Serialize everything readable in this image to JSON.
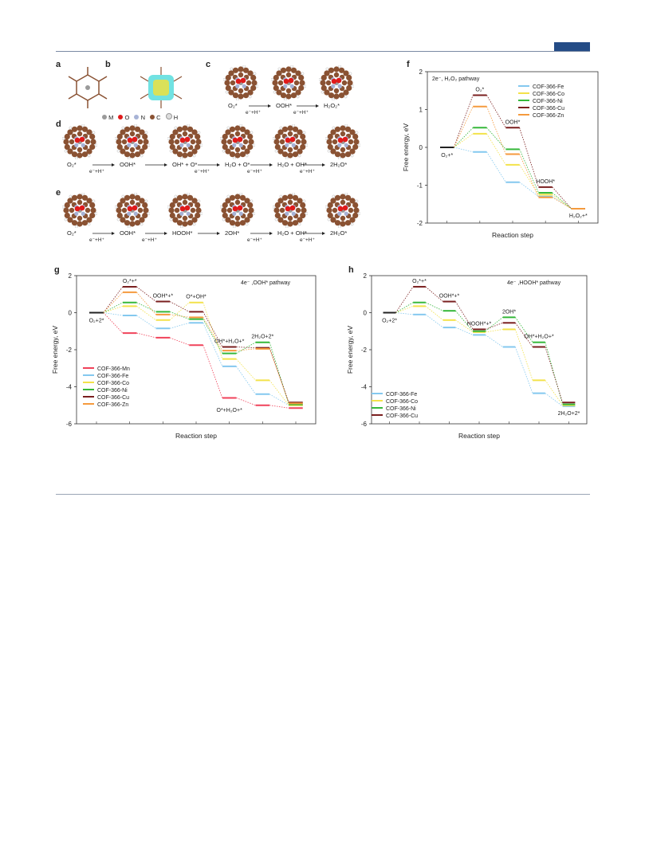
{
  "panel_labels": {
    "a": "a",
    "b": "b",
    "c": "c",
    "d": "d",
    "e": "e",
    "f": "f",
    "g": "g",
    "h": "h"
  },
  "atom_legend": {
    "M": "M",
    "O": "O",
    "N": "N",
    "C": "C",
    "H": "H",
    "text": "M  O  N  C  H"
  },
  "row_c": {
    "captions": [
      "O₂*",
      "OOH*",
      "H₂O₂*"
    ],
    "arrows": [
      "e⁻+H⁺",
      "e⁻+H⁺"
    ]
  },
  "row_d": {
    "captions": [
      "O₂*",
      "OOH*",
      "OH* + O*",
      "H₂O + O*",
      "H₂O + OH*",
      "2H₂O*"
    ],
    "arrows": [
      "e⁻+H⁺",
      "",
      "e⁻+H⁺",
      "e⁻+H⁺",
      "e⁻+H⁺"
    ]
  },
  "row_e": {
    "captions": [
      "O₂*",
      "OOH*",
      "HOOH*",
      "2OH*",
      "H₂O + OH*",
      "2H₂O*"
    ],
    "arrows": [
      "e⁻+H⁺",
      "e⁻+H⁺",
      "",
      "e⁻+H⁺",
      "e⁻+H⁺"
    ]
  },
  "colors": {
    "Mn": "#f0425a",
    "Fe": "#84c8ef",
    "Co": "#f3e24a",
    "Ni": "#36b83a",
    "Cu": "#7a1f1f",
    "Zn": "#f59a3d",
    "atom_M": "#9a9a9a",
    "atom_O": "#e01b1b",
    "atom_N": "#a7b3d6",
    "atom_C": "#8a5233",
    "atom_H": "#f4f4f4"
  },
  "chart_data": [
    {
      "id": "f",
      "type": "line",
      "subtitle": "2e⁻, H₂O₂ pathway",
      "ylabel": "Free energy, eV",
      "xlabel": "Reaction step",
      "ylim": [
        -2,
        2
      ],
      "yticks": [
        "2",
        "1",
        "0",
        "-1",
        "-2"
      ],
      "step_labels": [
        "O₂+*",
        "O₂*",
        "OOH*",
        "HOOH*",
        "H₂O₂+*"
      ],
      "series": [
        {
          "name": "COF-366-Fe",
          "color_key": "Fe",
          "values": [
            0,
            -0.12,
            -0.92,
            -1.3,
            -1.62
          ]
        },
        {
          "name": "COF-366-Co",
          "color_key": "Co",
          "values": [
            0,
            0.36,
            -0.46,
            -1.25,
            -1.62
          ]
        },
        {
          "name": "COF-366-Ni",
          "color_key": "Ni",
          "values": [
            0,
            0.52,
            -0.05,
            -1.2,
            -1.62
          ]
        },
        {
          "name": "COF-366-Cu",
          "color_key": "Cu",
          "values": [
            0,
            1.38,
            0.52,
            -1.05,
            -1.62
          ]
        },
        {
          "name": "COF-366-Zn",
          "color_key": "Zn",
          "values": [
            0,
            1.08,
            -0.18,
            -1.32,
            -1.62
          ]
        }
      ]
    },
    {
      "id": "g",
      "type": "line",
      "subtitle": "4e⁻ ,OOH* pathway",
      "ylabel": "Free energy, eV",
      "xlabel": "Reaction step",
      "ylim": [
        -6,
        2
      ],
      "yticks": [
        "2",
        "0",
        "-2",
        "-4",
        "-6"
      ],
      "step_labels": [
        "O₂+2*",
        "O₂*+*",
        "OOH*+*",
        "O*+OH*",
        "OH*+H₂O+*",
        "2H₂O+2*"
      ],
      "extra_labels": [
        "O*+H₂O+*"
      ],
      "series": [
        {
          "name": "COF-366-Mn",
          "color_key": "Mn",
          "values": [
            0,
            -1.1,
            -1.35,
            -1.75,
            -4.6,
            -5.0,
            -5.15
          ]
        },
        {
          "name": "COF-366-Fe",
          "color_key": "Fe",
          "values": [
            0,
            -0.15,
            -0.85,
            -0.55,
            -2.9,
            -4.4,
            -5.0
          ]
        },
        {
          "name": "COF-366-Co",
          "color_key": "Co",
          "values": [
            0,
            0.35,
            -0.4,
            0.55,
            -2.5,
            -3.65,
            -5.0
          ]
        },
        {
          "name": "COF-366-Ni",
          "color_key": "Ni",
          "values": [
            0,
            0.55,
            0.05,
            -0.35,
            -2.2,
            -1.6,
            -4.95
          ]
        },
        {
          "name": "COF-366-Cu",
          "color_key": "Cu",
          "values": [
            0,
            1.4,
            0.6,
            0.05,
            -1.85,
            -1.9,
            -4.85
          ]
        },
        {
          "name": "COF-366-Zn",
          "color_key": "Zn",
          "values": [
            0,
            1.1,
            -0.1,
            -0.25,
            -2.05,
            -1.95,
            -4.9
          ]
        }
      ]
    },
    {
      "id": "h",
      "type": "line",
      "subtitle": "4e⁻ ,HOOH* pathway",
      "ylabel": "Free energy, eV",
      "xlabel": "Reaction step",
      "ylim": [
        -6,
        2
      ],
      "yticks": [
        "2",
        "0",
        "-2",
        "-4",
        "-6"
      ],
      "step_labels": [
        "O₂+2*",
        "O₂*+*",
        "OOH*+*",
        "HOOH*+*",
        "2OH*",
        "OH*+H₂O+*",
        "2H₂O+2*"
      ],
      "series": [
        {
          "name": "COF-366-Fe",
          "color_key": "Fe",
          "values": [
            0,
            -0.1,
            -0.8,
            -1.2,
            -1.85,
            -4.35,
            -5.05
          ]
        },
        {
          "name": "COF-366-Co",
          "color_key": "Co",
          "values": [
            0,
            0.35,
            -0.4,
            -1.05,
            -0.9,
            -3.65,
            -5.0
          ]
        },
        {
          "name": "COF-366-Ni",
          "color_key": "Ni",
          "values": [
            0,
            0.55,
            0.1,
            -1.0,
            -0.25,
            -1.6,
            -4.95
          ]
        },
        {
          "name": "COF-366-Cu",
          "color_key": "Cu",
          "values": [
            0,
            1.4,
            0.6,
            -0.9,
            -0.55,
            -1.85,
            -4.85
          ]
        }
      ]
    }
  ]
}
